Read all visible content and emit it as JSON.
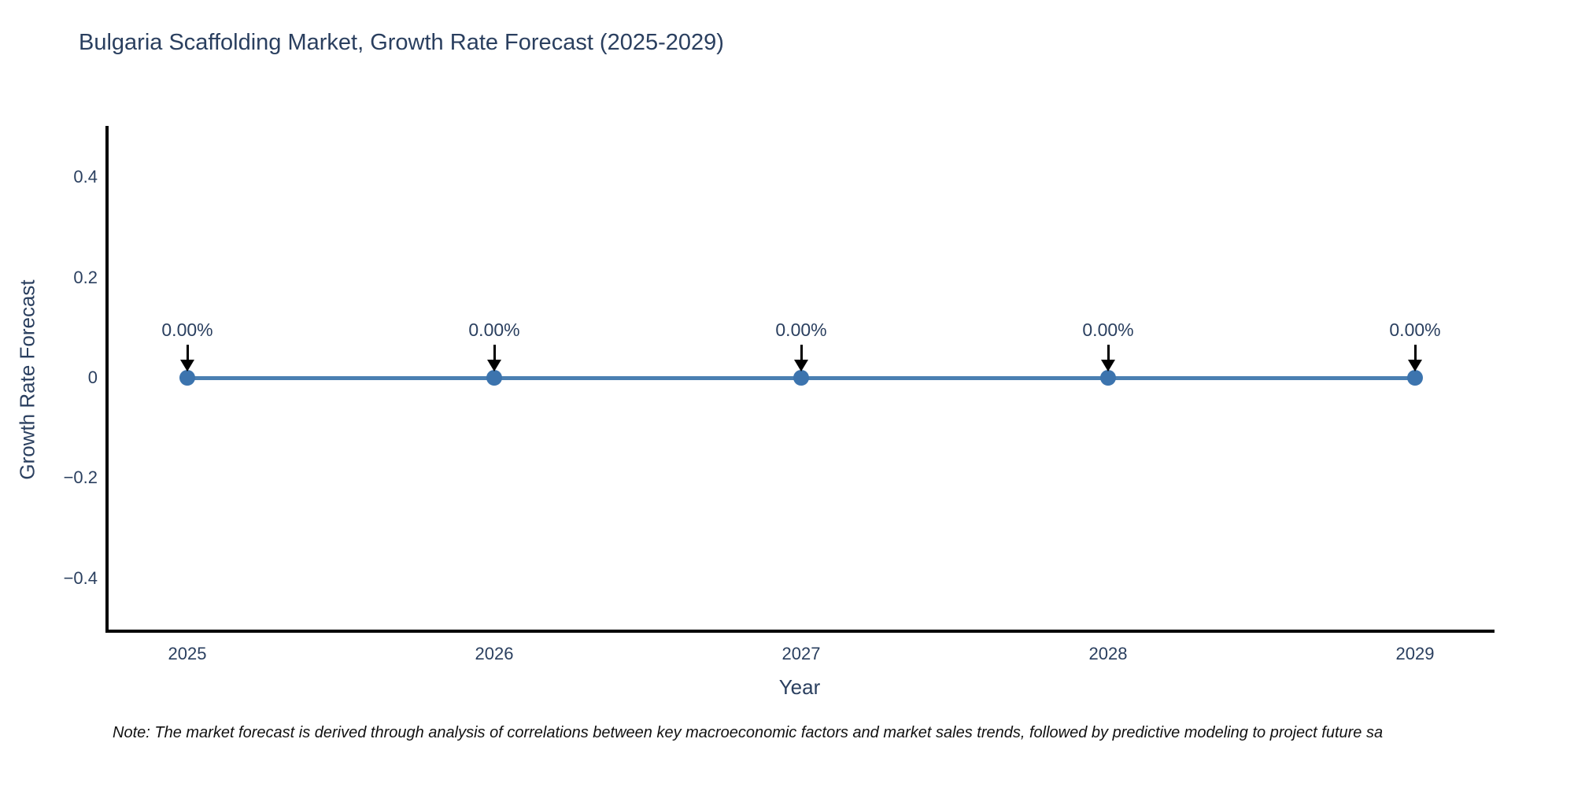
{
  "chart_data": {
    "type": "line",
    "title": "Bulgaria Scaffolding Market, Growth Rate Forecast (2025-2029)",
    "xlabel": "Year",
    "ylabel": "Growth Rate Forecast",
    "categories": [
      "2025",
      "2026",
      "2027",
      "2028",
      "2029"
    ],
    "series": [
      {
        "name": "Growth Rate Forecast",
        "values": [
          0,
          0,
          0,
          0,
          0
        ]
      }
    ],
    "point_labels": [
      "0.00%",
      "0.00%",
      "0.00%",
      "0.00%",
      "0.00%"
    ],
    "ylim": [
      -0.5,
      0.5
    ],
    "yticks": [
      {
        "value": 0.4,
        "label": "0.4"
      },
      {
        "value": 0.2,
        "label": "0.2"
      },
      {
        "value": 0,
        "label": "0"
      },
      {
        "value": -0.2,
        "label": "−0.2"
      },
      {
        "value": -0.4,
        "label": "−0.4"
      }
    ],
    "grid": false,
    "legend_position": "none",
    "colors": {
      "line": "#4a7fb2",
      "marker": "#3c74ae",
      "arrow": "#000000",
      "axis": "#000000",
      "text": "#2a3f5f"
    }
  },
  "note": {
    "text": "Note: The market forecast is derived through analysis of correlations between key macroeconomic factors and market sales trends, followed by predictive modeling to project future sa"
  }
}
